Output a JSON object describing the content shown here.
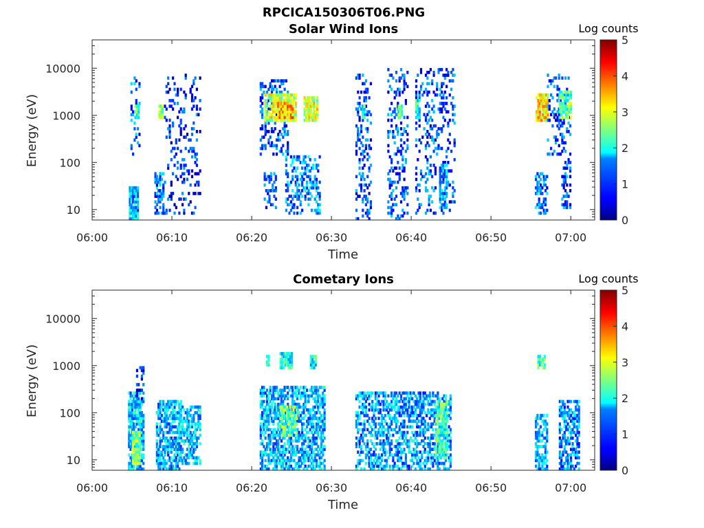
{
  "figure_title": "RPCICA150306T06.PNG",
  "chart_data": [
    {
      "type": "heatmap",
      "title": "Solar Wind Ions",
      "xlabel": "Time",
      "ylabel": "Energy (eV)",
      "x_tick_labels": [
        "06:00",
        "06:10",
        "06:20",
        "06:30",
        "06:40",
        "06:50",
        "07:00"
      ],
      "x_ticks_min": [
        0,
        10,
        20,
        30,
        40,
        50,
        60
      ],
      "xlim_min": [
        0,
        63
      ],
      "y_scale": "log",
      "y_tick_labels": [
        "10",
        "100",
        "1000",
        "10000"
      ],
      "y_ticks": [
        10,
        100,
        1000,
        10000
      ],
      "ylim": [
        6,
        40000
      ],
      "colorbar": {
        "label": "Log counts",
        "range": [
          0,
          5
        ],
        "ticks": [
          "0",
          "1",
          "2",
          "3",
          "4",
          "5"
        ],
        "colormap": "jet"
      },
      "clusters": [
        {
          "start_min": 4.6,
          "end_min": 5.8,
          "e_lo": 6,
          "e_hi": 30,
          "level": 1.5,
          "density": 0.9
        },
        {
          "start_min": 4.8,
          "end_min": 6.0,
          "e_lo": 150,
          "e_hi": 7000,
          "level": 1.2,
          "density": 0.25
        },
        {
          "start_min": 5.3,
          "end_min": 5.7,
          "e_lo": 900,
          "e_hi": 1700,
          "level": 2.3,
          "density": 0.9
        },
        {
          "start_min": 7.8,
          "end_min": 8.8,
          "e_lo": 8,
          "e_hi": 60,
          "level": 1.2,
          "density": 0.5
        },
        {
          "start_min": 8.3,
          "end_min": 8.8,
          "e_lo": 900,
          "e_hi": 1700,
          "level": 2.6,
          "density": 0.9
        },
        {
          "start_min": 9.0,
          "end_min": 13.5,
          "e_lo": 8,
          "e_hi": 8000,
          "level": 0.8,
          "density": 0.15
        },
        {
          "start_min": 21.0,
          "end_min": 24.5,
          "e_lo": 150,
          "e_hi": 6000,
          "level": 1.0,
          "density": 0.35
        },
        {
          "start_min": 21.5,
          "end_min": 23.0,
          "e_lo": 10,
          "e_hi": 60,
          "level": 1.0,
          "density": 0.4
        },
        {
          "start_min": 21.6,
          "end_min": 25.5,
          "e_lo": 700,
          "e_hi": 3000,
          "level": 2.8,
          "density": 0.8
        },
        {
          "start_min": 23.2,
          "end_min": 25.0,
          "e_lo": 800,
          "e_hi": 2000,
          "level": 3.5,
          "density": 0.8
        },
        {
          "start_min": 24.2,
          "end_min": 28.5,
          "e_lo": 8,
          "e_hi": 150,
          "level": 1.3,
          "density": 0.35
        },
        {
          "start_min": 26.5,
          "end_min": 28.2,
          "e_lo": 700,
          "e_hi": 2500,
          "level": 2.9,
          "density": 0.8
        },
        {
          "start_min": 33.0,
          "end_min": 35.0,
          "e_lo": 6,
          "e_hi": 8000,
          "level": 1.0,
          "density": 0.25
        },
        {
          "start_min": 33.8,
          "end_min": 34.1,
          "e_lo": 900,
          "e_hi": 1700,
          "level": 2.2,
          "density": 0.9
        },
        {
          "start_min": 37.0,
          "end_min": 39.5,
          "e_lo": 6,
          "e_hi": 10000,
          "level": 1.0,
          "density": 0.25
        },
        {
          "start_min": 38.3,
          "end_min": 38.7,
          "e_lo": 900,
          "e_hi": 1700,
          "level": 2.3,
          "density": 0.9
        },
        {
          "start_min": 40.5,
          "end_min": 45.5,
          "e_lo": 8,
          "e_hi": 10000,
          "level": 1.0,
          "density": 0.2
        },
        {
          "start_min": 40.5,
          "end_min": 41.0,
          "e_lo": 900,
          "e_hi": 2200,
          "level": 2.0,
          "density": 0.9
        },
        {
          "start_min": 43.5,
          "end_min": 44.5,
          "e_lo": 10,
          "e_hi": 90,
          "level": 1.5,
          "density": 0.6
        },
        {
          "start_min": 55.5,
          "end_min": 57.0,
          "e_lo": 8,
          "e_hi": 60,
          "level": 1.2,
          "density": 0.5
        },
        {
          "start_min": 55.6,
          "end_min": 57.2,
          "e_lo": 700,
          "e_hi": 3000,
          "level": 3.2,
          "density": 0.85
        },
        {
          "start_min": 57.0,
          "end_min": 60.0,
          "e_lo": 150,
          "e_hi": 8000,
          "level": 1.0,
          "density": 0.25
        },
        {
          "start_min": 58.5,
          "end_min": 60.0,
          "e_lo": 900,
          "e_hi": 3500,
          "level": 2.4,
          "density": 0.8
        },
        {
          "start_min": 58.8,
          "end_min": 60.0,
          "e_lo": 10,
          "e_hi": 120,
          "level": 1.0,
          "density": 0.4
        }
      ]
    },
    {
      "type": "heatmap",
      "title": "Cometary Ions",
      "xlabel": "Time",
      "ylabel": "Energy (eV)",
      "x_tick_labels": [
        "06:00",
        "06:10",
        "06:20",
        "06:30",
        "06:40",
        "06:50",
        "07:00"
      ],
      "x_ticks_min": [
        0,
        10,
        20,
        30,
        40,
        50,
        60
      ],
      "xlim_min": [
        0,
        63
      ],
      "y_scale": "log",
      "y_tick_labels": [
        "10",
        "100",
        "1000",
        "10000"
      ],
      "y_ticks": [
        10,
        100,
        1000,
        10000
      ],
      "ylim": [
        6,
        40000
      ],
      "colorbar": {
        "label": "Log counts",
        "range": [
          0,
          5
        ],
        "ticks": [
          "0",
          "1",
          "2",
          "3",
          "4",
          "5"
        ],
        "colormap": "jet"
      },
      "clusters": [
        {
          "start_min": 4.5,
          "end_min": 6.5,
          "e_lo": 6,
          "e_hi": 300,
          "level": 1.6,
          "density": 0.75
        },
        {
          "start_min": 5.0,
          "end_min": 6.0,
          "e_lo": 8,
          "e_hi": 40,
          "level": 2.5,
          "density": 0.9
        },
        {
          "start_min": 5.5,
          "end_min": 6.5,
          "e_lo": 200,
          "e_hi": 1000,
          "level": 0.8,
          "density": 0.4
        },
        {
          "start_min": 8.0,
          "end_min": 11.0,
          "e_lo": 6,
          "e_hi": 200,
          "level": 1.5,
          "density": 0.65
        },
        {
          "start_min": 11.0,
          "end_min": 13.5,
          "e_lo": 8,
          "e_hi": 150,
          "level": 1.6,
          "density": 0.5
        },
        {
          "start_min": 21.0,
          "end_min": 29.0,
          "e_lo": 6,
          "e_hi": 350,
          "level": 1.5,
          "density": 0.6
        },
        {
          "start_min": 23.5,
          "end_min": 25.5,
          "e_lo": 30,
          "e_hi": 150,
          "level": 2.4,
          "density": 0.7
        },
        {
          "start_min": 21.8,
          "end_min": 22.1,
          "e_lo": 1000,
          "e_hi": 1800,
          "level": 2.0,
          "density": 0.9
        },
        {
          "start_min": 23.5,
          "end_min": 25.0,
          "e_lo": 900,
          "e_hi": 2000,
          "level": 1.9,
          "density": 0.85
        },
        {
          "start_min": 27.3,
          "end_min": 28.0,
          "e_lo": 900,
          "e_hi": 1800,
          "level": 1.8,
          "density": 0.85
        },
        {
          "start_min": 33.0,
          "end_min": 45.0,
          "e_lo": 6,
          "e_hi": 300,
          "level": 1.4,
          "density": 0.5
        },
        {
          "start_min": 43.0,
          "end_min": 44.5,
          "e_lo": 10,
          "e_hi": 200,
          "level": 2.2,
          "density": 0.75
        },
        {
          "start_min": 55.5,
          "end_min": 57.0,
          "e_lo": 6,
          "e_hi": 100,
          "level": 1.5,
          "density": 0.55
        },
        {
          "start_min": 55.8,
          "end_min": 56.8,
          "e_lo": 900,
          "e_hi": 1800,
          "level": 2.2,
          "density": 0.85
        },
        {
          "start_min": 58.5,
          "end_min": 61.0,
          "e_lo": 6,
          "e_hi": 200,
          "level": 1.3,
          "density": 0.5
        }
      ]
    }
  ]
}
